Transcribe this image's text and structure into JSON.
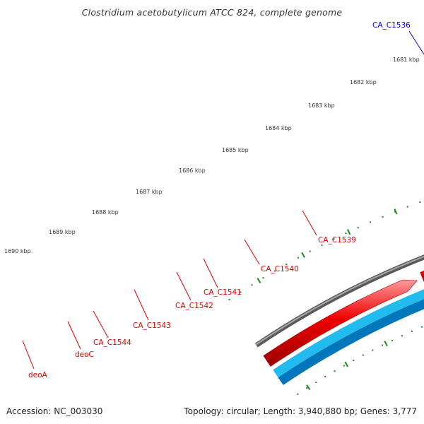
{
  "title": "Clostridium acetobutylicum ATCC 824, complete genome",
  "footer": {
    "accession": "Accession: NC_003030",
    "summary": "Topology: circular; Length: 3,940,880 bp; Genes: 3,777"
  },
  "colors": {
    "forward_gene": "#ee0000",
    "reverse_gene_blue": "#0000dd",
    "reverse_gene_cyan": "#22bbee",
    "reverse_gene_green": "#6b8e23",
    "backbone": "#808080",
    "ticks": "#1a8a1a",
    "label_red": "#dd0000",
    "label_blue": "#0000cc"
  },
  "kbp_ticks": [
    "1681 kbp",
    "1682 kbp",
    "1683 kbp",
    "1684 kbp",
    "1685 kbp",
    "1686 kbp",
    "1687 kbp",
    "1688 kbp",
    "1689 kbp",
    "1690 kbp"
  ],
  "gene_labels": [
    {
      "text": "CA_C1536",
      "color": "blue"
    },
    {
      "text": "CA_C1539",
      "color": "red"
    },
    {
      "text": "CA_C1540",
      "color": "red"
    },
    {
      "text": "CA_C1541",
      "color": "red"
    },
    {
      "text": "CA_C1542",
      "color": "red"
    },
    {
      "text": "CA_C1543",
      "color": "red"
    },
    {
      "text": "CA_C1544",
      "color": "red"
    },
    {
      "text": "deoC",
      "color": "red"
    },
    {
      "text": "deoA",
      "color": "red"
    }
  ]
}
